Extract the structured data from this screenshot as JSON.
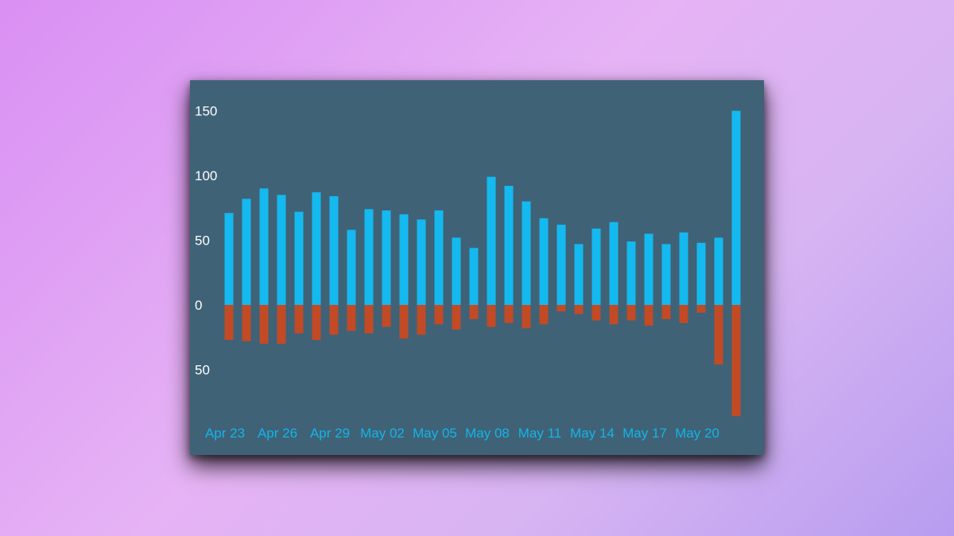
{
  "chart_data": {
    "type": "bar",
    "colors": {
      "positive": "#14b9f0",
      "negative": "#c24a25",
      "background": "#3f6277"
    },
    "y_ticks": [
      {
        "value": 150,
        "label": "150"
      },
      {
        "value": 100,
        "label": "100"
      },
      {
        "value": 50,
        "label": "50"
      },
      {
        "value": 0,
        "label": "0"
      },
      {
        "value": -50,
        "label": "50"
      }
    ],
    "ylim": [
      -90,
      160
    ],
    "x_labels": [
      {
        "index": 0,
        "label": "Apr 23"
      },
      {
        "index": 3,
        "label": "Apr 26"
      },
      {
        "index": 6,
        "label": "Apr 29"
      },
      {
        "index": 9,
        "label": "May 02"
      },
      {
        "index": 12,
        "label": "May 05"
      },
      {
        "index": 15,
        "label": "May 08"
      },
      {
        "index": 18,
        "label": "May 11"
      },
      {
        "index": 21,
        "label": "May 14"
      },
      {
        "index": 24,
        "label": "May 17"
      },
      {
        "index": 27,
        "label": "May 20"
      }
    ],
    "series": [
      {
        "values": [
          71,
          82,
          90,
          85,
          72,
          87,
          84,
          58,
          74,
          73,
          70,
          66,
          73,
          52,
          44,
          99,
          92,
          80,
          67,
          62,
          47,
          59,
          64,
          49,
          55,
          47,
          56,
          48,
          52,
          150
        ]
      },
      {
        "values": [
          -27,
          -28,
          -30,
          -30,
          -22,
          -27,
          -23,
          -20,
          -22,
          -17,
          -26,
          -23,
          -15,
          -19,
          -11,
          -17,
          -14,
          -18,
          -15,
          -5,
          -7,
          -12,
          -15,
          -12,
          -16,
          -11,
          -14,
          -6,
          -46,
          -86
        ]
      }
    ]
  }
}
